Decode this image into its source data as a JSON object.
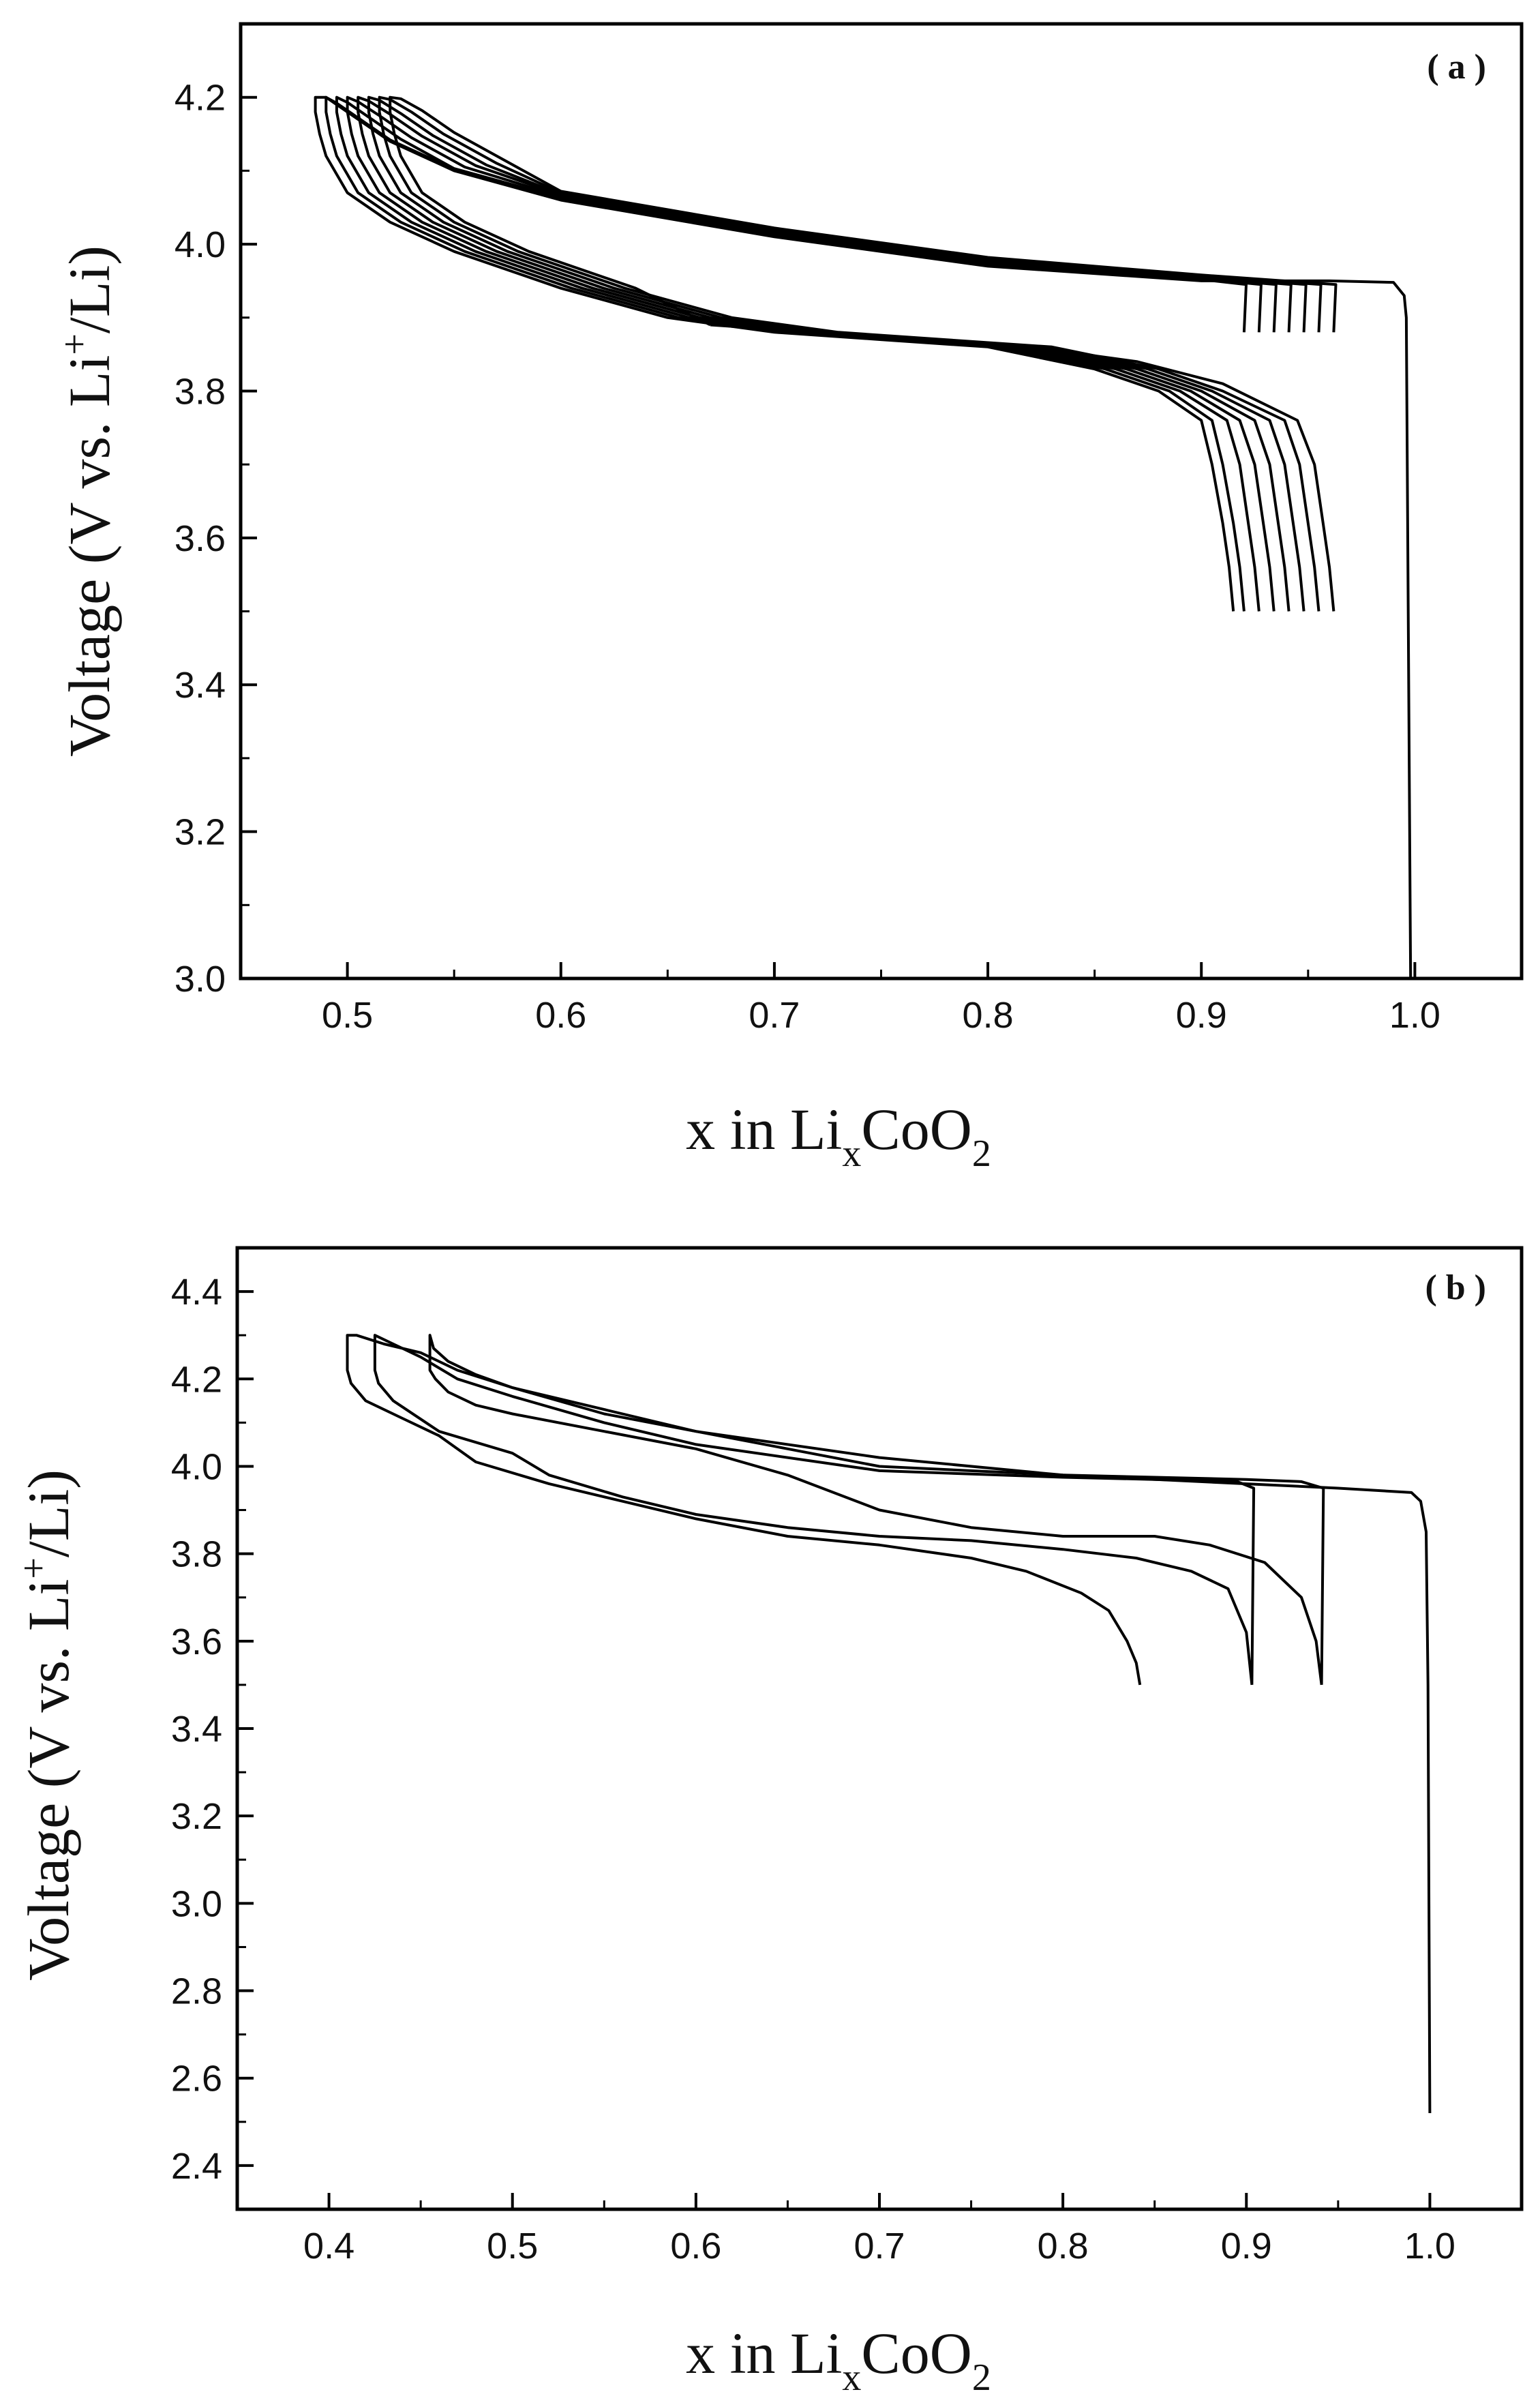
{
  "chart_data": [
    {
      "type": "line",
      "panel_label": "( a )",
      "xlabel": "x in Li_xCoO_2",
      "ylabel": "Voltage (V vs. Li+/Li)",
      "xlim": [
        0.45,
        1.05
      ],
      "ylim": [
        3.0,
        4.3
      ],
      "x_ticks": [
        "0.5",
        "0.6",
        "0.7",
        "0.8",
        "0.9",
        "1.0"
      ],
      "y_ticks": [
        "3.0",
        "3.2",
        "3.4",
        "3.6",
        "3.8",
        "4.0",
        "4.2"
      ],
      "grid": false,
      "line_color": "#000000",
      "series": [
        {
          "x": [
            0.998,
            0.996,
            0.995,
            0.99,
            0.96,
            0.9,
            0.8,
            0.7,
            0.6,
            0.55,
            0.52,
            0.505,
            0.495,
            0.49,
            0.485,
            0.485,
            0.487,
            0.49,
            0.5,
            0.52,
            0.55,
            0.6,
            0.65,
            0.7,
            0.75,
            0.8,
            0.85,
            0.88,
            0.9,
            0.905,
            0.91,
            0.913,
            0.915
          ],
          "y": [
            3.0,
            3.9,
            3.93,
            3.948,
            3.95,
            3.95,
            3.97,
            4.01,
            4.06,
            4.1,
            4.14,
            4.17,
            4.19,
            4.2,
            4.2,
            4.18,
            4.15,
            4.12,
            4.07,
            4.03,
            3.99,
            3.94,
            3.9,
            3.88,
            3.87,
            3.86,
            3.83,
            3.8,
            3.76,
            3.7,
            3.62,
            3.56,
            3.5
          ]
        },
        {
          "x": [
            0.92,
            0.921,
            0.9,
            0.8,
            0.7,
            0.6,
            0.55,
            0.52,
            0.505,
            0.495,
            0.49,
            0.49,
            0.492,
            0.495,
            0.505,
            0.525,
            0.555,
            0.605,
            0.655,
            0.705,
            0.755,
            0.805,
            0.855,
            0.885,
            0.905,
            0.91,
            0.915,
            0.918,
            0.92
          ],
          "y": [
            3.88,
            3.945,
            3.952,
            3.972,
            4.012,
            4.062,
            4.102,
            4.142,
            4.172,
            4.192,
            4.2,
            4.18,
            4.15,
            4.12,
            4.07,
            4.03,
            3.99,
            3.94,
            3.9,
            3.88,
            3.87,
            3.86,
            3.83,
            3.8,
            3.76,
            3.7,
            3.62,
            3.56,
            3.5
          ]
        },
        {
          "x": [
            0.927,
            0.928,
            0.9,
            0.8,
            0.7,
            0.6,
            0.55,
            0.525,
            0.51,
            0.5,
            0.495,
            0.495,
            0.497,
            0.5,
            0.51,
            0.53,
            0.56,
            0.61,
            0.66,
            0.71,
            0.76,
            0.81,
            0.86,
            0.89,
            0.912,
            0.918,
            0.922,
            0.925,
            0.927
          ],
          "y": [
            3.88,
            3.945,
            3.953,
            3.973,
            4.013,
            4.063,
            4.103,
            4.143,
            4.173,
            4.193,
            4.2,
            4.18,
            4.15,
            4.12,
            4.07,
            4.03,
            3.99,
            3.94,
            3.9,
            3.88,
            3.87,
            3.86,
            3.83,
            3.8,
            3.76,
            3.7,
            3.62,
            3.56,
            3.5
          ]
        },
        {
          "x": [
            0.934,
            0.935,
            0.9,
            0.8,
            0.7,
            0.6,
            0.555,
            0.53,
            0.515,
            0.505,
            0.5,
            0.5,
            0.502,
            0.505,
            0.515,
            0.535,
            0.565,
            0.615,
            0.665,
            0.715,
            0.765,
            0.815,
            0.865,
            0.895,
            0.918,
            0.925,
            0.929,
            0.932,
            0.934
          ],
          "y": [
            3.88,
            3.945,
            3.954,
            3.975,
            4.015,
            4.065,
            4.105,
            4.145,
            4.175,
            4.194,
            4.2,
            4.18,
            4.15,
            4.12,
            4.07,
            4.03,
            3.99,
            3.94,
            3.9,
            3.88,
            3.87,
            3.86,
            3.83,
            3.8,
            3.76,
            3.7,
            3.62,
            3.56,
            3.5
          ]
        },
        {
          "x": [
            0.941,
            0.942,
            0.9,
            0.8,
            0.7,
            0.6,
            0.56,
            0.535,
            0.52,
            0.51,
            0.505,
            0.505,
            0.507,
            0.51,
            0.52,
            0.54,
            0.57,
            0.62,
            0.67,
            0.72,
            0.77,
            0.82,
            0.87,
            0.9,
            0.925,
            0.932,
            0.936,
            0.939,
            0.941
          ],
          "y": [
            3.88,
            3.945,
            3.955,
            3.977,
            4.017,
            4.067,
            4.107,
            4.147,
            4.177,
            4.195,
            4.2,
            4.18,
            4.15,
            4.12,
            4.07,
            4.03,
            3.99,
            3.94,
            3.9,
            3.88,
            3.87,
            3.86,
            3.83,
            3.8,
            3.76,
            3.7,
            3.62,
            3.56,
            3.5
          ]
        },
        {
          "x": [
            0.948,
            0.949,
            0.9,
            0.8,
            0.7,
            0.6,
            0.565,
            0.54,
            0.525,
            0.515,
            0.51,
            0.51,
            0.512,
            0.515,
            0.525,
            0.545,
            0.575,
            0.625,
            0.675,
            0.725,
            0.775,
            0.825,
            0.875,
            0.905,
            0.932,
            0.939,
            0.943,
            0.946,
            0.948
          ],
          "y": [
            3.88,
            3.945,
            3.956,
            3.978,
            4.018,
            4.068,
            4.108,
            4.148,
            4.178,
            4.196,
            4.2,
            4.18,
            4.15,
            4.12,
            4.07,
            4.03,
            3.99,
            3.94,
            3.9,
            3.88,
            3.87,
            3.86,
            3.83,
            3.8,
            3.76,
            3.7,
            3.62,
            3.56,
            3.5
          ]
        },
        {
          "x": [
            0.955,
            0.956,
            0.9,
            0.8,
            0.7,
            0.6,
            0.57,
            0.545,
            0.53,
            0.52,
            0.515,
            0.515,
            0.517,
            0.52,
            0.53,
            0.55,
            0.58,
            0.63,
            0.68,
            0.73,
            0.78,
            0.83,
            0.88,
            0.91,
            0.939,
            0.946,
            0.95,
            0.953,
            0.955
          ],
          "y": [
            3.88,
            3.945,
            3.957,
            3.98,
            4.02,
            4.07,
            4.11,
            4.15,
            4.18,
            4.197,
            4.2,
            4.18,
            4.15,
            4.12,
            4.07,
            4.03,
            3.99,
            3.94,
            3.9,
            3.88,
            3.87,
            3.86,
            3.83,
            3.8,
            3.76,
            3.7,
            3.62,
            3.56,
            3.5
          ]
        },
        {
          "x": [
            0.962,
            0.963,
            0.9,
            0.8,
            0.7,
            0.6,
            0.575,
            0.55,
            0.535,
            0.525,
            0.52,
            0.52,
            0.522,
            0.525,
            0.535,
            0.555,
            0.585,
            0.635,
            0.67
          ],
          "y": [
            3.88,
            3.945,
            3.958,
            3.982,
            4.022,
            4.072,
            4.112,
            4.152,
            4.182,
            4.198,
            4.2,
            4.18,
            4.15,
            4.12,
            4.07,
            4.03,
            3.99,
            3.94,
            3.89
          ]
        },
        {
          "x": [
            0.67,
            0.72,
            0.77,
            0.82,
            0.87,
            0.91,
            0.945,
            0.953,
            0.957,
            0.96,
            0.962
          ],
          "y": [
            3.89,
            3.88,
            3.87,
            3.86,
            3.84,
            3.81,
            3.76,
            3.7,
            3.62,
            3.56,
            3.5
          ]
        }
      ]
    },
    {
      "type": "line",
      "panel_label": "( b )",
      "xlabel": "x in Li_xCoO_2",
      "ylabel": "Voltage (V vs. Li+/Li)",
      "xlim": [
        0.35,
        1.05
      ],
      "ylim": [
        2.3,
        4.5
      ],
      "x_ticks": [
        "0.4",
        "0.5",
        "0.6",
        "0.7",
        "0.8",
        "0.9",
        "1.0"
      ],
      "y_ticks": [
        "2.4",
        "2.6",
        "2.8",
        "3.0",
        "3.2",
        "3.4",
        "3.6",
        "3.8",
        "4.0",
        "4.2",
        "4.4"
      ],
      "grid": false,
      "line_color": "#000000",
      "series": [
        {
          "x": [
            1.0,
            0.999,
            0.998,
            0.995,
            0.99,
            0.95,
            0.9,
            0.8,
            0.7,
            0.6,
            0.55,
            0.5,
            0.47,
            0.45,
            0.43,
            0.415,
            0.41,
            0.41,
            0.412,
            0.42,
            0.44,
            0.46,
            0.48,
            0.52,
            0.56,
            0.6,
            0.65,
            0.7,
            0.75,
            0.78,
            0.81,
            0.825,
            0.835,
            0.84,
            0.842
          ],
          "y": [
            2.52,
            3.5,
            3.85,
            3.92,
            3.94,
            3.95,
            3.96,
            3.98,
            4.02,
            4.08,
            4.12,
            4.18,
            4.22,
            4.26,
            4.28,
            4.3,
            4.3,
            4.22,
            4.19,
            4.15,
            4.11,
            4.07,
            4.01,
            3.96,
            3.92,
            3.88,
            3.84,
            3.82,
            3.79,
            3.76,
            3.71,
            3.67,
            3.6,
            3.55,
            3.5
          ]
        },
        {
          "x": [
            0.903,
            0.904,
            0.895,
            0.85,
            0.8,
            0.7,
            0.6,
            0.55,
            0.5,
            0.47,
            0.45,
            0.435,
            0.425,
            0.425,
            0.427,
            0.435,
            0.46,
            0.5,
            0.52,
            0.56,
            0.6,
            0.65,
            0.7,
            0.75,
            0.8,
            0.84,
            0.87,
            0.89,
            0.9,
            0.903
          ],
          "y": [
            3.5,
            3.95,
            3.965,
            3.97,
            3.975,
            3.99,
            4.05,
            4.1,
            4.16,
            4.2,
            4.25,
            4.28,
            4.3,
            4.22,
            4.19,
            4.15,
            4.08,
            4.03,
            3.98,
            3.93,
            3.89,
            3.86,
            3.84,
            3.83,
            3.81,
            3.79,
            3.76,
            3.72,
            3.62,
            3.5
          ]
        },
        {
          "x": [
            0.941,
            0.942,
            0.93,
            0.9,
            0.85,
            0.8,
            0.7,
            0.65,
            0.6,
            0.55,
            0.5,
            0.48,
            0.465,
            0.457,
            0.455,
            0.455,
            0.458,
            0.465,
            0.48,
            0.5,
            0.55,
            0.6,
            0.65,
            0.7,
            0.75,
            0.8,
            0.85,
            0.88,
            0.91,
            0.93,
            0.938,
            0.941
          ],
          "y": [
            3.5,
            3.95,
            3.965,
            3.97,
            3.975,
            3.98,
            4.0,
            4.04,
            4.08,
            4.13,
            4.18,
            4.21,
            4.24,
            4.27,
            4.3,
            4.22,
            4.2,
            4.17,
            4.14,
            4.12,
            4.08,
            4.04,
            3.98,
            3.9,
            3.86,
            3.84,
            3.84,
            3.82,
            3.78,
            3.7,
            3.6,
            3.5
          ]
        }
      ]
    }
  ]
}
